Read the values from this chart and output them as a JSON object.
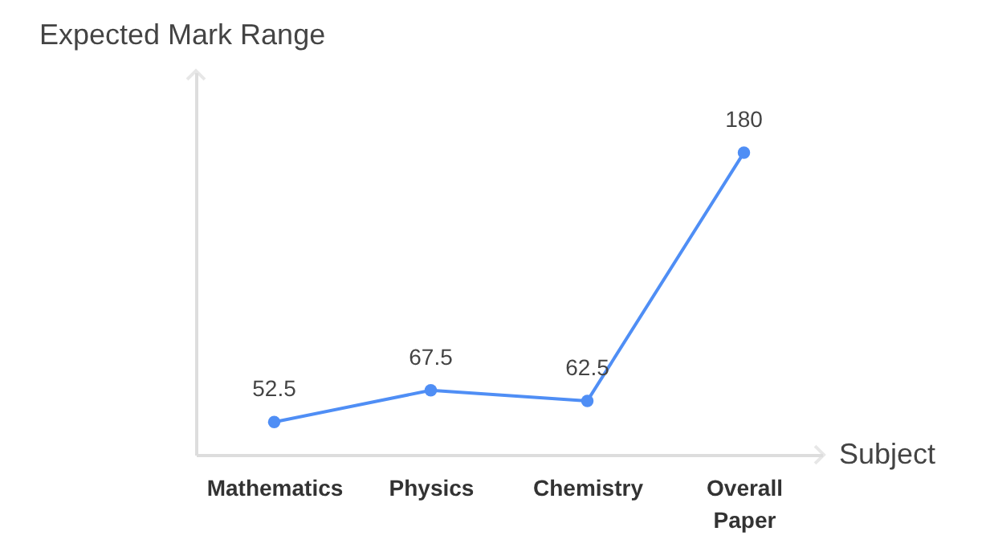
{
  "chart_data": {
    "type": "line",
    "ylabel": "Expected Mark Range",
    "xlabel": "Subject",
    "categories": [
      "Mathematics",
      "Physics",
      "Chemistry",
      "Overall Paper"
    ],
    "series": [
      {
        "color": "#4f8ef5",
        "values": [
          52.5,
          67.5,
          62.5,
          180
        ]
      }
    ],
    "ylim": [
      37,
      218
    ],
    "data_labels": true,
    "marker": "circle",
    "grid": false,
    "tick_labels": "x"
  }
}
